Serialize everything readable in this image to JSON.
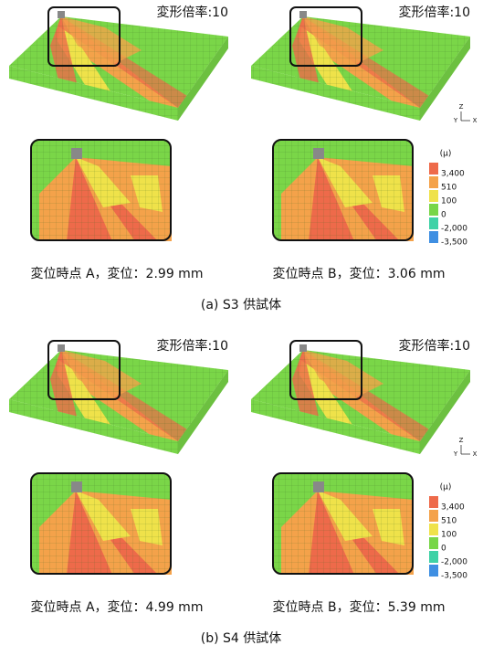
{
  "panels": [
    {
      "label": "(a) S3 供試体",
      "views": [
        {
          "scale_label": "変形倍率:10",
          "caption": "変位時点 A，変位：2.99 mm"
        },
        {
          "scale_label": "変形倍率:10",
          "caption": "変位時点 B，変位：3.06 mm"
        }
      ]
    },
    {
      "label": "(b) S4 供試体",
      "views": [
        {
          "scale_label": "変形倍率:10",
          "caption": "変位時点 A，変位：4.99 mm"
        },
        {
          "scale_label": "変形倍率:10",
          "caption": "変位時点 B，変位：5.39 mm"
        }
      ]
    }
  ],
  "legend": {
    "unit": "(μ)",
    "levels": [
      "3,400",
      "510",
      "100",
      "0",
      "-2,000",
      "-3,500"
    ],
    "colors": [
      "#ee6a4a",
      "#f4a24a",
      "#efe24a",
      "#78d648",
      "#3fd2a6",
      "#3f8fe2"
    ]
  },
  "axes": {
    "z": "Z",
    "y": "Y",
    "x": "X"
  }
}
